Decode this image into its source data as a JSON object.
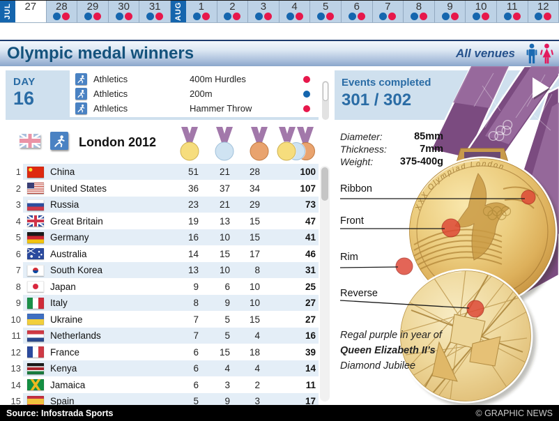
{
  "colors": {
    "calendar-blue": "#1565ad",
    "calendar-cell": "#bdd2e6",
    "dot-blue": "#1566ae",
    "dot-red": "#e7174b",
    "title-text": "#14527c",
    "venue-text": "#26528c",
    "panel-blue": "#cfe0ee",
    "accent-text": "#2a6ca5",
    "row-alt": "#e4eef7",
    "ribbon-purple": "#7b4b80",
    "ribbon-purple-light": "#9a6d9f",
    "runner-blue": "#4a82c3",
    "male-blue": "#1b6ab2",
    "female-red": "#e3195e",
    "medal-gold": "#f6dd7d",
    "medal-silver": "#cfe3f2",
    "medal-bronze": "#e9a36e"
  },
  "icons": {
    "play-icon": "▶",
    "athletics-icon": "running figure",
    "male-icon": "male pictogram",
    "female-icon": "female pictogram",
    "gold-medal-icon": "gold medal on ribbon",
    "silver-medal-icon": "silver medal on ribbon",
    "bronze-medal-icon": "bronze medal on ribbon",
    "total-medals-icon": "three overlapping medals",
    "blue-session-dot": "morning session dot",
    "red-session-dot": "evening session dot"
  },
  "calendar": {
    "months": [
      {
        "label": "JUL",
        "days": [
          {
            "num": "27",
            "dots": []
          },
          {
            "num": "28",
            "dots": [
              "blue",
              "red"
            ]
          },
          {
            "num": "29",
            "dots": [
              "blue",
              "red"
            ]
          },
          {
            "num": "30",
            "dots": [
              "blue",
              "red"
            ]
          },
          {
            "num": "31",
            "dots": [
              "blue",
              "red"
            ]
          }
        ]
      },
      {
        "label": "AUG",
        "days": [
          {
            "num": "1",
            "dots": [
              "blue",
              "red"
            ]
          },
          {
            "num": "2",
            "dots": [
              "blue",
              "red"
            ]
          },
          {
            "num": "3",
            "dots": [
              "blue",
              "red"
            ]
          },
          {
            "num": "4",
            "dots": [
              "blue",
              "red"
            ]
          },
          {
            "num": "5",
            "dots": [
              "blue",
              "red"
            ]
          },
          {
            "num": "6",
            "dots": [
              "blue",
              "red"
            ]
          },
          {
            "num": "7",
            "dots": [
              "blue",
              "red"
            ]
          },
          {
            "num": "8",
            "dots": [
              "blue",
              "red"
            ]
          },
          {
            "num": "9",
            "dots": [
              "blue",
              "red"
            ]
          },
          {
            "num": "10",
            "dots": [
              "blue",
              "red"
            ]
          },
          {
            "num": "11",
            "dots": [
              "blue",
              "red"
            ]
          },
          {
            "num": "12",
            "dots": [
              "blue",
              "red"
            ]
          }
        ]
      }
    ]
  },
  "header": {
    "title": "Olympic medal winners",
    "venues": "All venues"
  },
  "day_panel": {
    "label": "DAY",
    "number": "16",
    "events": [
      {
        "sport": "Athletics",
        "event": "400m Hurdles",
        "dot": "red"
      },
      {
        "sport": "Athletics",
        "event": "200m",
        "dot": "blue"
      },
      {
        "sport": "Athletics",
        "event": "Hammer Throw",
        "dot": "red"
      }
    ]
  },
  "events_completed": {
    "label": "Events completed",
    "value": "301 / 302"
  },
  "medal_table": {
    "title": "London 2012",
    "columns": [
      "gold",
      "silver",
      "bronze",
      "total"
    ],
    "rows": [
      {
        "rank": "1",
        "country": "China",
        "flag": "cn",
        "gold": "51",
        "silver": "21",
        "bronze": "28",
        "total": "100"
      },
      {
        "rank": "2",
        "country": "United States",
        "flag": "us",
        "gold": "36",
        "silver": "37",
        "bronze": "34",
        "total": "107"
      },
      {
        "rank": "3",
        "country": "Russia",
        "flag": "ru",
        "gold": "23",
        "silver": "21",
        "bronze": "29",
        "total": "73"
      },
      {
        "rank": "4",
        "country": "Great Britain",
        "flag": "gb",
        "gold": "19",
        "silver": "13",
        "bronze": "15",
        "total": "47"
      },
      {
        "rank": "5",
        "country": "Germany",
        "flag": "de",
        "gold": "16",
        "silver": "10",
        "bronze": "15",
        "total": "41"
      },
      {
        "rank": "6",
        "country": "Australia",
        "flag": "au",
        "gold": "14",
        "silver": "15",
        "bronze": "17",
        "total": "46"
      },
      {
        "rank": "7",
        "country": "South Korea",
        "flag": "kr",
        "gold": "13",
        "silver": "10",
        "bronze": "8",
        "total": "31"
      },
      {
        "rank": "8",
        "country": "Japan",
        "flag": "jp",
        "gold": "9",
        "silver": "6",
        "bronze": "10",
        "total": "25"
      },
      {
        "rank": "9",
        "country": "Italy",
        "flag": "it",
        "gold": "8",
        "silver": "9",
        "bronze": "10",
        "total": "27"
      },
      {
        "rank": "10",
        "country": "Ukraine",
        "flag": "ua",
        "gold": "7",
        "silver": "5",
        "bronze": "15",
        "total": "27"
      },
      {
        "rank": "11",
        "country": "Netherlands",
        "flag": "nl",
        "gold": "7",
        "silver": "5",
        "bronze": "4",
        "total": "16"
      },
      {
        "rank": "12",
        "country": "France",
        "flag": "fr",
        "gold": "6",
        "silver": "15",
        "bronze": "18",
        "total": "39"
      },
      {
        "rank": "13",
        "country": "Kenya",
        "flag": "ke",
        "gold": "6",
        "silver": "4",
        "bronze": "4",
        "total": "14"
      },
      {
        "rank": "14",
        "country": "Jamaica",
        "flag": "jm",
        "gold": "6",
        "silver": "3",
        "bronze": "2",
        "total": "11"
      },
      {
        "rank": "15",
        "country": "Spain",
        "flag": "es",
        "gold": "5",
        "silver": "9",
        "bronze": "3",
        "total": "17"
      }
    ]
  },
  "medal_panel": {
    "specs": [
      {
        "label": "Diameter:",
        "value": "85mm"
      },
      {
        "label": "Thickness:",
        "value": "7mm"
      },
      {
        "label": "Weight:",
        "value": "375-400g"
      }
    ],
    "callouts": [
      "Ribbon",
      "Front",
      "Rim",
      "Reverse"
    ],
    "engraving": "XXX Olympiad London",
    "note": {
      "pre": "Regal purple in year of ",
      "bold": "Queen Elizabeth II’s",
      "post": " Diamond Jubilee"
    }
  },
  "footer": {
    "source": "Source: Infostrada Sports",
    "credit": "© GRAPHIC NEWS"
  }
}
